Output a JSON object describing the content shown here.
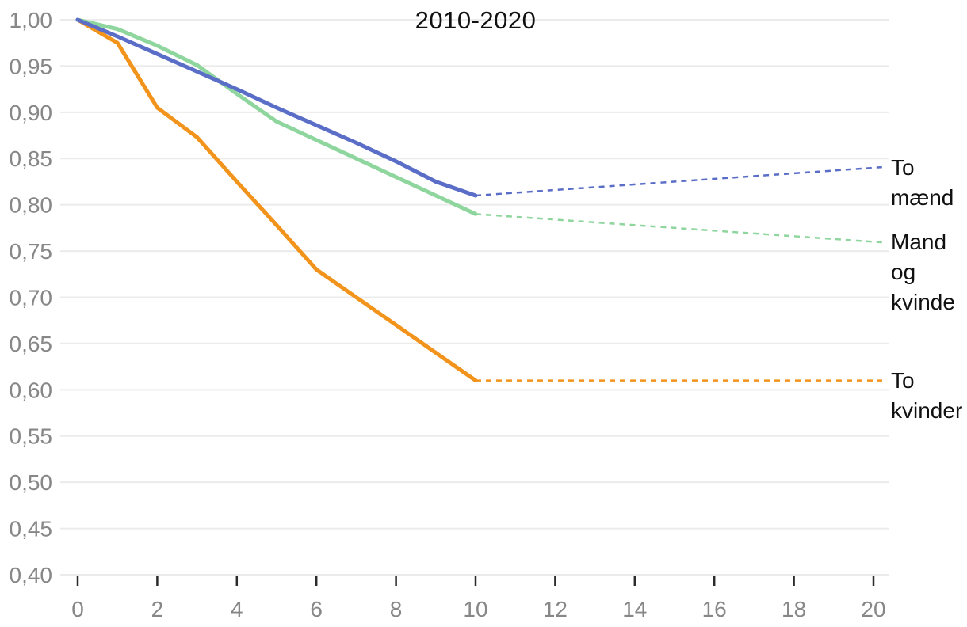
{
  "chart_data": {
    "type": "line",
    "title": "2010-2020",
    "xlabel": "",
    "ylabel": "",
    "xlim": [
      0,
      20
    ],
    "ylim": [
      0.4,
      1.0
    ],
    "grid": "horizontal",
    "legend_position": "right-of-lines",
    "x_ticks": [
      0,
      2,
      4,
      6,
      8,
      10,
      12,
      14,
      16,
      18,
      20
    ],
    "y_ticks": [
      {
        "value": 1.0,
        "label": "1,00"
      },
      {
        "value": 0.95,
        "label": "0,95"
      },
      {
        "value": 0.9,
        "label": "0,90"
      },
      {
        "value": 0.85,
        "label": "0,85"
      },
      {
        "value": 0.8,
        "label": "0,80"
      },
      {
        "value": 0.75,
        "label": "0,75"
      },
      {
        "value": 0.7,
        "label": "0,70"
      },
      {
        "value": 0.65,
        "label": "0,65"
      },
      {
        "value": 0.6,
        "label": "0,60"
      },
      {
        "value": 0.55,
        "label": "0,55"
      },
      {
        "value": 0.5,
        "label": "0,50"
      },
      {
        "value": 0.45,
        "label": "0,45"
      },
      {
        "value": 0.4,
        "label": "0,40"
      }
    ],
    "series": [
      {
        "name": "To mænd",
        "label_display": "To\nmænd",
        "color": "#5B6EC7",
        "solid_x": [
          0,
          1,
          2,
          3,
          4,
          5,
          6,
          7,
          8,
          9,
          10
        ],
        "solid_y": [
          1.0,
          0.982,
          0.963,
          0.944,
          0.925,
          0.905,
          0.886,
          0.867,
          0.847,
          0.825,
          0.81
        ],
        "dashed_x": [
          10,
          20
        ],
        "dashed_y": [
          0.81,
          0.84
        ]
      },
      {
        "name": "Mand og kvinde",
        "label_display": "Mand\nog\nkvinde",
        "color": "#8FD69E",
        "solid_x": [
          0,
          1,
          2,
          3,
          4,
          5,
          6,
          7,
          8,
          9,
          10
        ],
        "solid_y": [
          1.0,
          0.99,
          0.972,
          0.951,
          0.92,
          0.89,
          0.87,
          0.85,
          0.83,
          0.81,
          0.79
        ],
        "dashed_x": [
          10,
          20
        ],
        "dashed_y": [
          0.79,
          0.76
        ]
      },
      {
        "name": "To kvinder",
        "label_display": "To\nkvinder",
        "color": "#F2941C",
        "solid_x": [
          0,
          1,
          2,
          3,
          4,
          5,
          6,
          7,
          8,
          9,
          10
        ],
        "solid_y": [
          1.0,
          0.975,
          0.905,
          0.873,
          0.825,
          0.778,
          0.73,
          0.7,
          0.67,
          0.64,
          0.61
        ],
        "dashed_x": [
          10,
          20
        ],
        "dashed_y": [
          0.61,
          0.61
        ]
      }
    ],
    "colors": {
      "background": "#ffffff",
      "gridline": "#ebebeb",
      "tick_mark": "#2b2b2b",
      "tick_label": "#878787",
      "text": "#111111"
    }
  }
}
